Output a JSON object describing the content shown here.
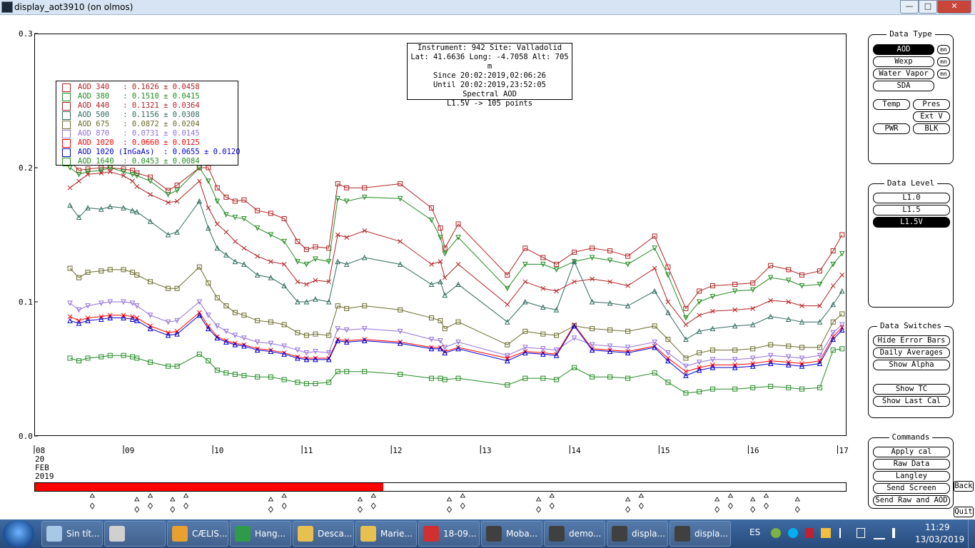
{
  "window": {
    "title": "display_aot3910 (on olmos)",
    "controls": {
      "minimize": "—",
      "maximize": "□",
      "close": "✕"
    }
  },
  "info_box": {
    "lines": [
      "Instrument: 942 Site: Valladolid",
      "Lat: 41.6636 Long: -4.7058 Alt: 705 m",
      "Since 20:02:2019,02:06:26",
      "Until 20:02:2019,23:52:05",
      "Spectral AOD",
      "L1.5V -> 105 points"
    ]
  },
  "legend": [
    {
      "name": "AOD 340",
      "text": "AOD 340   : 0.1626 ± 0.0458",
      "color": "#b22222",
      "marker": "square"
    },
    {
      "name": "AOD 380",
      "text": "AOD 380   : 0.1510 ± 0.0415",
      "color": "#228b22",
      "marker": "tri-down"
    },
    {
      "name": "AOD 440",
      "text": "AOD 440   : 0.1321 ± 0.0364",
      "color": "#b22222",
      "marker": "x"
    },
    {
      "name": "AOD 500",
      "text": "AOD 500   : 0.1156 ± 0.0308",
      "color": "#2e6b5e",
      "marker": "tri-up"
    },
    {
      "name": "AOD 675",
      "text": "AOD 675   : 0.0872 ± 0.0204",
      "color": "#6b6b2a",
      "marker": "square"
    },
    {
      "name": "AOD 870",
      "text": "AOD 870   : 0.0731 ± 0.0145",
      "color": "#9370db",
      "marker": "tri-down"
    },
    {
      "name": "AOD 1020",
      "text": "AOD 1020  : 0.0660 ± 0.0125",
      "color": "#ff0000",
      "marker": "x"
    },
    {
      "name": "AOD 1020 (InGaAs)",
      "text": "AOD 1020 (InGaAs)  : 0.0655 ± 0.0120",
      "color": "#0000cd",
      "marker": "tri-up"
    },
    {
      "name": "AOD 1640",
      "text": "AOD 1640  : 0.0453 ± 0.0084",
      "color": "#228b22",
      "marker": "square"
    }
  ],
  "chart_data": {
    "type": "line",
    "ylim": [
      0.0,
      0.3
    ],
    "ytick_labels": [
      "0.3",
      "0.2",
      "0.1",
      "0.0"
    ],
    "ytick_values": [
      0.3,
      0.2,
      0.1,
      0.0
    ],
    "xlim": [
      8,
      17.1
    ],
    "xtick_labels": [
      "08",
      "09",
      "10",
      "11",
      "12",
      "13",
      "14",
      "15",
      "16",
      "17"
    ],
    "xtick_values": [
      8,
      9,
      10,
      11,
      12,
      13,
      14,
      15,
      16,
      17
    ],
    "date_label_lines": [
      "20",
      "FEB",
      "2019"
    ],
    "x": [
      8.4,
      8.5,
      8.6,
      8.75,
      8.85,
      9.0,
      9.1,
      9.15,
      9.3,
      9.5,
      9.6,
      9.85,
      9.95,
      10.05,
      10.15,
      10.25,
      10.35,
      10.5,
      10.65,
      10.8,
      10.95,
      11.05,
      11.15,
      11.3,
      11.4,
      11.5,
      11.7,
      12.1,
      12.45,
      12.55,
      12.6,
      12.75,
      13.3,
      13.5,
      13.7,
      13.85,
      14.05,
      14.25,
      14.45,
      14.65,
      14.95,
      15.1,
      15.3,
      15.45,
      15.6,
      15.85,
      16.05,
      16.25,
      16.45,
      16.6,
      16.8,
      16.95,
      17.05
    ],
    "series": [
      {
        "name": "AOD 340",
        "values": [
          0.205,
          0.198,
          0.199,
          0.2,
          0.2,
          0.199,
          0.198,
          0.196,
          0.193,
          0.183,
          0.187,
          0.2,
          0.2,
          0.185,
          0.178,
          0.175,
          0.176,
          0.168,
          0.166,
          0.162,
          0.145,
          0.139,
          0.141,
          0.14,
          0.188,
          0.185,
          0.185,
          0.188,
          0.17,
          0.155,
          0.14,
          0.158,
          0.12,
          0.14,
          0.133,
          0.128,
          0.137,
          0.14,
          0.138,
          0.134,
          0.149,
          0.126,
          0.095,
          0.108,
          0.112,
          0.113,
          0.114,
          0.127,
          0.124,
          0.12,
          0.123,
          0.138,
          0.15
        ]
      },
      {
        "name": "AOD 380",
        "values": [
          0.2,
          0.195,
          0.197,
          0.198,
          0.2,
          0.197,
          0.195,
          0.194,
          0.19,
          0.18,
          0.183,
          0.2,
          0.19,
          0.175,
          0.165,
          0.163,
          0.162,
          0.155,
          0.15,
          0.145,
          0.13,
          0.128,
          0.132,
          0.13,
          0.177,
          0.175,
          0.178,
          0.177,
          0.161,
          0.148,
          0.136,
          0.148,
          0.11,
          0.128,
          0.128,
          0.124,
          0.13,
          0.133,
          0.131,
          0.128,
          0.14,
          0.12,
          0.088,
          0.1,
          0.104,
          0.108,
          0.109,
          0.118,
          0.116,
          0.112,
          0.113,
          0.128,
          0.136
        ]
      },
      {
        "name": "AOD 440",
        "values": [
          0.185,
          0.19,
          0.195,
          0.196,
          0.197,
          0.194,
          0.19,
          0.186,
          0.18,
          0.174,
          0.175,
          0.19,
          0.17,
          0.158,
          0.152,
          0.145,
          0.14,
          0.134,
          0.13,
          0.128,
          0.115,
          0.113,
          0.116,
          0.115,
          0.15,
          0.148,
          0.153,
          0.145,
          0.128,
          0.13,
          0.118,
          0.128,
          0.098,
          0.115,
          0.11,
          0.108,
          0.115,
          0.117,
          0.115,
          0.112,
          0.125,
          0.1,
          0.083,
          0.09,
          0.093,
          0.094,
          0.095,
          0.101,
          0.1,
          0.097,
          0.097,
          0.112,
          0.12
        ]
      },
      {
        "name": "AOD 500",
        "values": [
          0.172,
          0.163,
          0.17,
          0.169,
          0.171,
          0.17,
          0.168,
          0.167,
          0.16,
          0.15,
          0.152,
          0.175,
          0.155,
          0.14,
          0.135,
          0.13,
          0.128,
          0.12,
          0.118,
          0.112,
          0.1,
          0.1,
          0.102,
          0.1,
          0.13,
          0.128,
          0.133,
          0.128,
          0.113,
          0.115,
          0.105,
          0.113,
          0.085,
          0.1,
          0.096,
          0.094,
          0.13,
          0.1,
          0.099,
          0.097,
          0.108,
          0.092,
          0.072,
          0.078,
          0.08,
          0.082,
          0.083,
          0.089,
          0.087,
          0.085,
          0.085,
          0.098,
          0.108
        ]
      },
      {
        "name": "AOD 675",
        "values": [
          0.125,
          0.118,
          0.122,
          0.123,
          0.124,
          0.124,
          0.122,
          0.12,
          0.115,
          0.11,
          0.11,
          0.126,
          0.114,
          0.103,
          0.097,
          0.092,
          0.09,
          0.086,
          0.085,
          0.083,
          0.077,
          0.075,
          0.076,
          0.075,
          0.097,
          0.095,
          0.097,
          0.094,
          0.088,
          0.086,
          0.08,
          0.085,
          0.068,
          0.078,
          0.076,
          0.075,
          0.082,
          0.08,
          0.079,
          0.078,
          0.082,
          0.072,
          0.058,
          0.062,
          0.064,
          0.064,
          0.065,
          0.068,
          0.067,
          0.066,
          0.066,
          0.085,
          0.091
        ]
      },
      {
        "name": "AOD 870",
        "values": [
          0.099,
          0.094,
          0.097,
          0.099,
          0.1,
          0.1,
          0.099,
          0.097,
          0.09,
          0.085,
          0.086,
          0.1,
          0.09,
          0.082,
          0.078,
          0.075,
          0.073,
          0.07,
          0.069,
          0.067,
          0.064,
          0.062,
          0.063,
          0.062,
          0.08,
          0.079,
          0.08,
          0.078,
          0.072,
          0.071,
          0.066,
          0.07,
          0.06,
          0.066,
          0.065,
          0.064,
          0.073,
          0.068,
          0.067,
          0.066,
          0.07,
          0.062,
          0.052,
          0.055,
          0.057,
          0.057,
          0.058,
          0.06,
          0.059,
          0.058,
          0.06,
          0.077,
          0.083
        ]
      },
      {
        "name": "AOD 1020",
        "values": [
          0.089,
          0.086,
          0.088,
          0.089,
          0.09,
          0.09,
          0.089,
          0.088,
          0.082,
          0.077,
          0.078,
          0.092,
          0.082,
          0.074,
          0.071,
          0.069,
          0.068,
          0.065,
          0.064,
          0.062,
          0.059,
          0.058,
          0.058,
          0.058,
          0.072,
          0.071,
          0.072,
          0.07,
          0.066,
          0.066,
          0.063,
          0.066,
          0.058,
          0.063,
          0.062,
          0.061,
          0.083,
          0.065,
          0.064,
          0.063,
          0.067,
          0.058,
          0.048,
          0.051,
          0.053,
          0.053,
          0.054,
          0.056,
          0.055,
          0.054,
          0.056,
          0.074,
          0.081
        ]
      },
      {
        "name": "AOD 1020 (InGaAs)",
        "values": [
          0.086,
          0.084,
          0.086,
          0.087,
          0.088,
          0.088,
          0.087,
          0.086,
          0.08,
          0.075,
          0.076,
          0.09,
          0.08,
          0.073,
          0.07,
          0.068,
          0.067,
          0.064,
          0.063,
          0.061,
          0.058,
          0.057,
          0.057,
          0.057,
          0.071,
          0.07,
          0.071,
          0.069,
          0.065,
          0.065,
          0.062,
          0.065,
          0.056,
          0.062,
          0.061,
          0.06,
          0.082,
          0.064,
          0.063,
          0.062,
          0.066,
          0.056,
          0.045,
          0.049,
          0.051,
          0.051,
          0.052,
          0.054,
          0.053,
          0.052,
          0.054,
          0.072,
          0.079
        ]
      },
      {
        "name": "AOD 1640",
        "values": [
          0.058,
          0.056,
          0.058,
          0.059,
          0.06,
          0.06,
          0.059,
          0.058,
          0.055,
          0.052,
          0.052,
          0.061,
          0.056,
          0.049,
          0.047,
          0.046,
          0.045,
          0.044,
          0.044,
          0.042,
          0.04,
          0.039,
          0.039,
          0.04,
          0.048,
          0.048,
          0.048,
          0.046,
          0.043,
          0.043,
          0.042,
          0.043,
          0.038,
          0.043,
          0.043,
          0.042,
          0.051,
          0.044,
          0.044,
          0.043,
          0.047,
          0.04,
          0.032,
          0.033,
          0.035,
          0.035,
          0.036,
          0.037,
          0.036,
          0.035,
          0.036,
          0.064,
          0.065
        ]
      }
    ],
    "grid": false
  },
  "colors": {
    "timebar_fill": "#ff0000",
    "taskbar": "#2f5a90"
  },
  "timebar": {
    "filled_fraction": 0.43
  },
  "sun_markers": {
    "x": [
      8.65,
      9.15,
      9.3,
      9.55,
      9.7,
      10.65,
      10.8,
      11.65,
      11.8,
      12.65,
      12.8,
      13.65,
      13.8,
      14.65,
      14.8,
      15.65,
      15.8,
      16.05,
      16.2,
      16.55
    ]
  },
  "panels": {
    "data_type": {
      "title": "Data Type",
      "buttons": [
        {
          "label": "AOD",
          "selected": true,
          "suffix": "mn"
        },
        {
          "label": "Wexp",
          "selected": false,
          "suffix": "mn"
        },
        {
          "label": "Water Vapor",
          "selected": false,
          "suffix": "mn"
        },
        {
          "label": "SDA",
          "selected": false
        }
      ],
      "small_buttons": [
        "Temp",
        "Pres",
        "Ext V",
        "PWR",
        "BLK"
      ]
    },
    "data_level": {
      "title": "Data Level",
      "buttons": [
        {
          "label": "L1.0",
          "selected": false
        },
        {
          "label": "L1.5",
          "selected": false
        },
        {
          "label": "L1.5V",
          "selected": true
        }
      ]
    },
    "data_switches": {
      "title": "Data Switches",
      "buttons": [
        "Hide Error Bars",
        "Daily Averages",
        "Show Alpha",
        "Show TC",
        "Show Last Cal"
      ]
    },
    "commands": {
      "title": "Commands",
      "buttons": [
        "Apply cal",
        "Raw Data",
        "Langley",
        "Send Screen",
        "Send Raw and AOD"
      ],
      "back": "Back",
      "quit": "Quit"
    }
  },
  "taskbar": {
    "tasks": [
      {
        "label": "Sin tít...",
        "icon": "notepad-icon",
        "color": "#a8c8e8"
      },
      {
        "label": "",
        "icon": "calculator-icon",
        "color": "#d0d0d0"
      },
      {
        "label": "CÆLIS...",
        "icon": "chrome-icon",
        "color": "#e8a030"
      },
      {
        "label": "Hang...",
        "icon": "hangouts-icon",
        "color": "#2e9a4a"
      },
      {
        "label": "Desca...",
        "icon": "folder-icon",
        "color": "#e8c050"
      },
      {
        "label": "Marie...",
        "icon": "folder-icon",
        "color": "#e8c050"
      },
      {
        "label": "18-09...",
        "icon": "pdf-icon",
        "color": "#d03030"
      },
      {
        "label": "Moba...",
        "icon": "terminal-icon",
        "color": "#404040"
      },
      {
        "label": "demo...",
        "icon": "terminal-icon",
        "color": "#404040"
      },
      {
        "label": "displa...",
        "icon": "terminal-icon",
        "color": "#404040"
      },
      {
        "label": "displa...",
        "icon": "terminal-icon",
        "color": "#404040"
      }
    ],
    "language": "ES",
    "time": "11:29",
    "date": "13/03/2019"
  }
}
